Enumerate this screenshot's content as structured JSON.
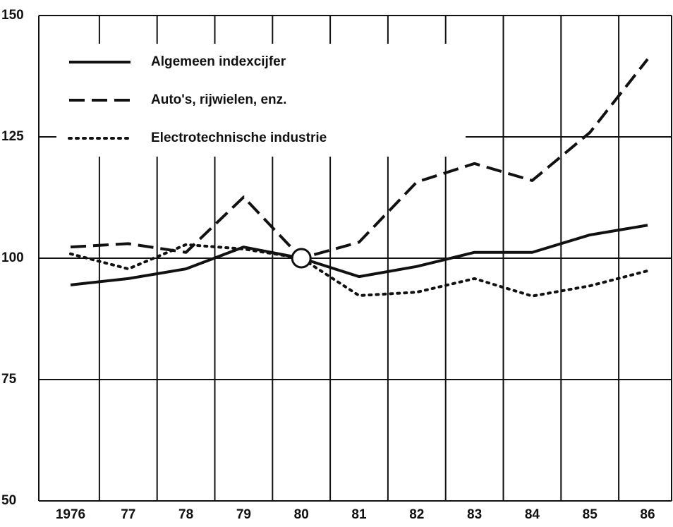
{
  "chart_data": {
    "type": "line",
    "categories": [
      "1976",
      "77",
      "78",
      "79",
      "80",
      "81",
      "82",
      "83",
      "84",
      "85",
      "86"
    ],
    "series": [
      {
        "name": "Algemeen indexcijfer",
        "color": "#111111",
        "style": "solid",
        "values": [
          94.5,
          95.8,
          97.8,
          102.3,
          100,
          96.2,
          98.3,
          101.2,
          101.2,
          104.8,
          106.8
        ]
      },
      {
        "name": "Auto's, rijwielen, enz.",
        "color": "#111111",
        "style": "dashed",
        "values": [
          102.3,
          103,
          101.2,
          112.6,
          100,
          103.3,
          115.7,
          119.5,
          116,
          125.9,
          141
        ]
      },
      {
        "name": "Electrotechnische industrie",
        "color": "#111111",
        "style": "dotted",
        "values": [
          100.9,
          97.8,
          102.8,
          101.9,
          100,
          92.3,
          93,
          95.8,
          92.2,
          94.3,
          97.4
        ]
      }
    ],
    "ylim": [
      50,
      150
    ],
    "yticks": [
      50,
      75,
      100,
      125,
      150
    ],
    "grid": true
  }
}
